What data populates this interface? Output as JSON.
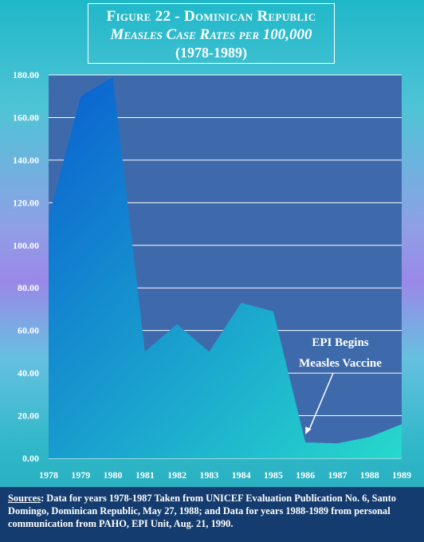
{
  "title": {
    "line1": "Figure 22 - Dominican Republic",
    "line2": "Measles Case Rates per 100,000",
    "line3": "(1978-1989)"
  },
  "colors": {
    "plot_bg": "#3e6aac",
    "area_top": "#0a5fd0",
    "area_bottom": "#27d9cc",
    "grid": "#ffffff"
  },
  "chart_data": {
    "type": "area",
    "x": [
      "1978",
      "1979",
      "1980",
      "1981",
      "1982",
      "1983",
      "1984",
      "1985",
      "1986",
      "1987",
      "1988",
      "1989"
    ],
    "values": [
      113,
      170,
      179,
      50,
      63,
      50,
      73,
      69,
      7.5,
      7,
      10,
      16
    ],
    "ylim": [
      0,
      180
    ],
    "yticks": [
      "0.00",
      "20.00",
      "40.00",
      "60.00",
      "80.00",
      "100.00",
      "120.00",
      "140.00",
      "160.00",
      "180.00"
    ],
    "grid": true,
    "annotations": [
      {
        "lines": [
          "EPI Begins",
          "Measles Vaccine"
        ],
        "points_to": "1986"
      }
    ]
  },
  "sources": {
    "label": "Sources",
    "text": ": Data for years 1978-1987 Taken from UNICEF Evaluation Publication No. 6, Santo Domingo, Dominican Republic, May 27, 1988; and Data for years 1988-1989 from personal communication from PAHO, EPI Unit, Aug. 21, 1990."
  }
}
